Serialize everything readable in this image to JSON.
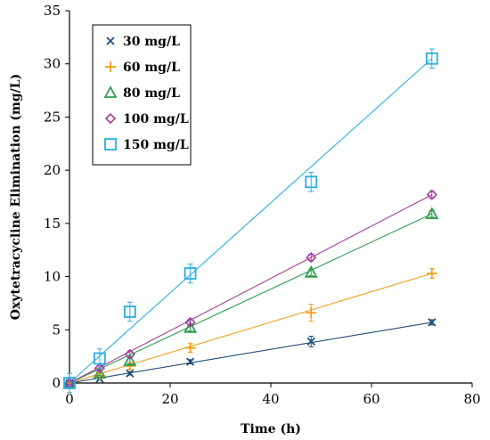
{
  "chart_data": {
    "type": "scatter",
    "xlabel": "Time (h)",
    "ylabel": "Oxytetracycline Elimination (mg/L)",
    "xlim": [
      0,
      80
    ],
    "ylim": [
      0,
      35
    ],
    "xticks": [
      "0",
      "20",
      "40",
      "60",
      "80"
    ],
    "yticks": [
      "0",
      "5",
      "10",
      "15",
      "20",
      "25",
      "30",
      "35"
    ],
    "grid": false,
    "legend_position": "top-left",
    "series": [
      {
        "name": "30 mg/L",
        "marker": "x",
        "color": "#1f4e79",
        "x": [
          0,
          6,
          12,
          24,
          48,
          72
        ],
        "y": [
          0,
          0.4,
          0.9,
          2.0,
          3.9,
          5.7
        ],
        "err": [
          0.1,
          0.1,
          0.15,
          0.2,
          0.5,
          0.25
        ],
        "fit": [
          [
            0,
            0
          ],
          [
            72,
            5.7
          ]
        ]
      },
      {
        "name": "60 mg/L",
        "marker": "plus",
        "color": "#f0a11e",
        "x": [
          0,
          6,
          12,
          24,
          48,
          72
        ],
        "y": [
          0,
          0.7,
          1.6,
          3.3,
          6.6,
          10.3
        ],
        "err": [
          0.1,
          0.2,
          0.3,
          0.4,
          0.8,
          0.45
        ],
        "fit": [
          [
            0,
            0
          ],
          [
            72,
            10.3
          ]
        ]
      },
      {
        "name": "80 mg/L",
        "marker": "triangle",
        "color": "#2e9e4f",
        "x": [
          0,
          6,
          12,
          24,
          48,
          72
        ],
        "y": [
          0,
          0.9,
          2.1,
          5.2,
          10.4,
          15.9
        ],
        "err": [
          0.1,
          0.2,
          0.3,
          0.3,
          0.3,
          0.3
        ],
        "fit": [
          [
            0,
            0
          ],
          [
            72,
            15.9
          ]
        ]
      },
      {
        "name": "100 mg/L",
        "marker": "diamond",
        "color": "#a0409a",
        "x": [
          0,
          6,
          12,
          24,
          48,
          72
        ],
        "y": [
          0,
          1.4,
          2.7,
          5.7,
          11.8,
          17.7
        ],
        "err": [
          0.1,
          0.2,
          0.3,
          0.3,
          0.3,
          0.3
        ],
        "fit": [
          [
            0,
            0
          ],
          [
            72,
            17.7
          ]
        ]
      },
      {
        "name": "150 mg/L",
        "marker": "square",
        "color": "#29aee0",
        "x": [
          0,
          6,
          12,
          24,
          48,
          72
        ],
        "y": [
          0,
          2.3,
          6.7,
          10.3,
          18.9,
          30.5
        ],
        "err": [
          0.9,
          0.9,
          0.9,
          0.9,
          0.9,
          0.9
        ],
        "fit": [
          [
            0,
            0
          ],
          [
            72,
            30.5
          ]
        ]
      }
    ]
  }
}
